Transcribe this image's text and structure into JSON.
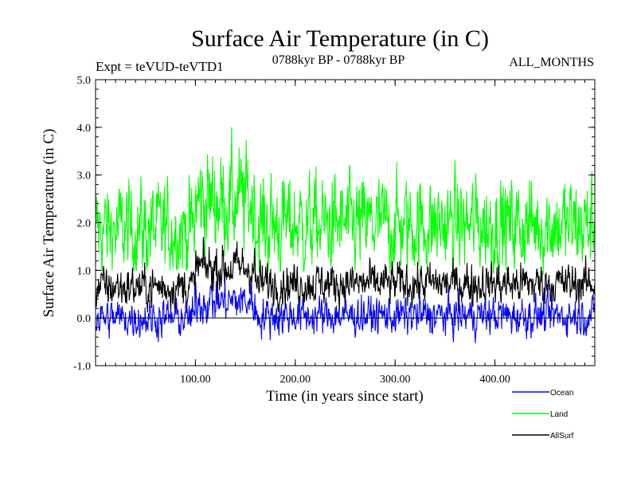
{
  "chart_data": {
    "type": "line",
    "title": "Surface Air Temperature (in C)",
    "subtitle_left": "Expt = teVUD-teVTD1",
    "subtitle_center": "0788kyr BP - 0788kyr BP",
    "subtitle_right": "ALL_MONTHS",
    "xlabel": "Time (in years since start)",
    "ylabel": "Surface Air Temperature (in C)",
    "xlim": [
      0,
      500
    ],
    "ylim": [
      -1.0,
      5.0
    ],
    "x_ticks": [
      100,
      200,
      300,
      400
    ],
    "x_tick_labels": [
      "100.00",
      "200.00",
      "300.00",
      "400.00"
    ],
    "y_ticks": [
      -1.0,
      0.0,
      1.0,
      2.0,
      3.0,
      4.0,
      5.0
    ],
    "y_tick_labels": [
      "-1.0",
      "0.0",
      "1.0",
      "2.0",
      "3.0",
      "4.0",
      "5.0"
    ],
    "zero_line": 0.0,
    "legend_position": "bottom-right",
    "series": [
      {
        "name": "Ocean",
        "color": "#0000ff",
        "segments": [
          {
            "x_start": 0,
            "x_end": 100,
            "mean": 0.0,
            "noise": 0.18,
            "min": -0.6,
            "max": 0.5
          },
          {
            "x_start": 100,
            "x_end": 160,
            "mean": 0.35,
            "noise": 0.2,
            "min": -0.2,
            "max": 1.0
          },
          {
            "x_start": 160,
            "x_end": 500,
            "mean": 0.05,
            "noise": 0.18,
            "min": -0.7,
            "max": 0.7
          }
        ]
      },
      {
        "name": "Land",
        "color": "#00ff00",
        "segments": [
          {
            "x_start": 0,
            "x_end": 100,
            "mean": 1.85,
            "noise": 0.45,
            "min": 1.0,
            "max": 3.3
          },
          {
            "x_start": 100,
            "x_end": 160,
            "mean": 2.45,
            "noise": 0.5,
            "min": 1.2,
            "max": 4.3
          },
          {
            "x_start": 160,
            "x_end": 500,
            "mean": 1.95,
            "noise": 0.45,
            "min": 0.9,
            "max": 3.4
          }
        ]
      },
      {
        "name": "AllSurf",
        "color": "#000000",
        "segments": [
          {
            "x_start": 0,
            "x_end": 100,
            "mean": 0.65,
            "noise": 0.2,
            "min": 0.1,
            "max": 1.2
          },
          {
            "x_start": 100,
            "x_end": 160,
            "mean": 1.05,
            "noise": 0.22,
            "min": 0.5,
            "max": 1.9
          },
          {
            "x_start": 160,
            "x_end": 500,
            "mean": 0.72,
            "noise": 0.2,
            "min": 0.1,
            "max": 1.5
          }
        ]
      }
    ]
  }
}
